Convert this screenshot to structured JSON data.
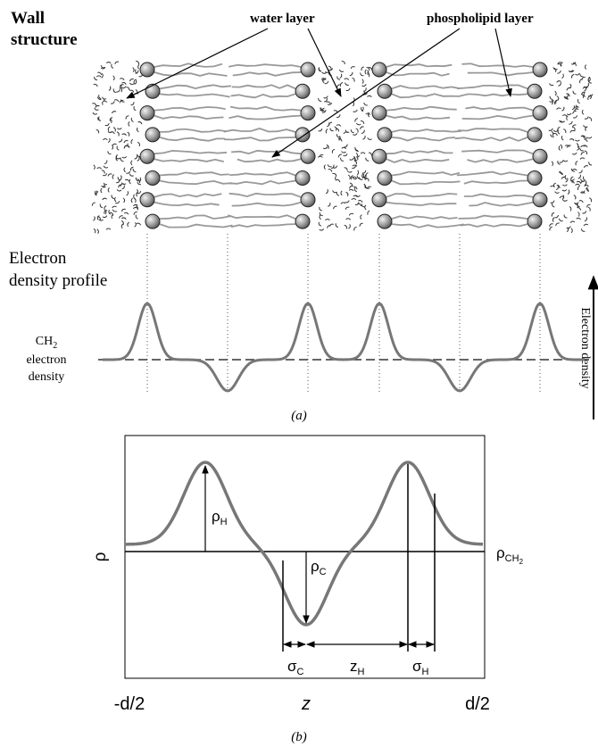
{
  "panel_a": {
    "title_lines": [
      "Wall",
      "structure"
    ],
    "water_label": "water layer",
    "phospholipid_label": "phospholipid layer",
    "profile_label_lines": [
      "Electron",
      "density profile"
    ],
    "ch2_label": {
      "symbol": "CH",
      "subscript": "2",
      "lines": [
        "electron",
        "density"
      ]
    },
    "axis_label": "Electron density",
    "caption": "(a)"
  },
  "panel_b": {
    "rho_h": {
      "symbol": "ρ",
      "subscript": "H"
    },
    "rho_c": {
      "symbol": "ρ",
      "subscript": "C"
    },
    "rho_ch2": {
      "symbol": "ρ",
      "subscript": "CH",
      "subsubscript": "2"
    },
    "y_label": "ρ",
    "sigma_c": {
      "symbol": "σ",
      "subscript": "C"
    },
    "z_h": {
      "symbol": "z",
      "subscript": "H"
    },
    "sigma_h": {
      "symbol": "σ",
      "subscript": "H"
    },
    "x_left": "-d/2",
    "x_mid": "z",
    "x_right": "d/2",
    "caption": "(b)"
  }
}
